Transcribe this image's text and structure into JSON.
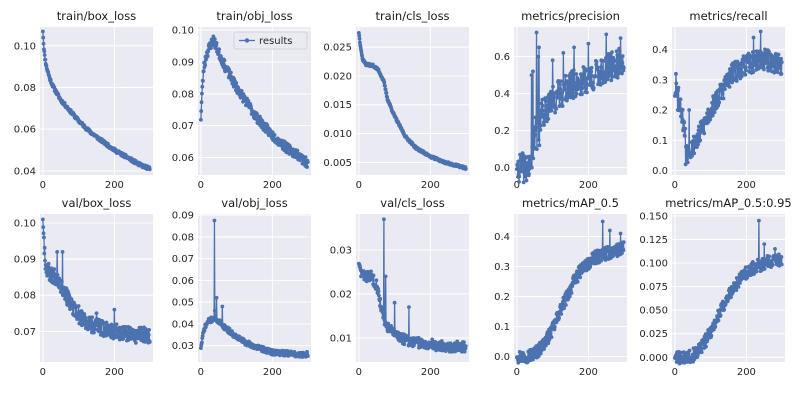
{
  "colors": {
    "series": "#4c72b0",
    "panel": "#eaeaf2",
    "grid": "#ffffff"
  },
  "chart_data": [
    {
      "type": "line",
      "title": "train/box_loss",
      "legend": null,
      "xlim": [
        -8,
        308
      ],
      "xticks": [
        0,
        200
      ],
      "ylim": [
        0.038,
        0.109
      ],
      "yticks": [
        0.04,
        0.06,
        0.08,
        0.1
      ],
      "ytick_labels": [
        "0.04",
        "0.06",
        "0.08",
        "0.10"
      ],
      "anchors": [
        [
          0,
          0.107
        ],
        [
          2,
          0.101
        ],
        [
          5,
          0.095
        ],
        [
          10,
          0.09
        ],
        [
          20,
          0.084
        ],
        [
          30,
          0.08
        ],
        [
          40,
          0.077
        ],
        [
          50,
          0.074
        ],
        [
          70,
          0.07
        ],
        [
          100,
          0.064
        ],
        [
          130,
          0.059
        ],
        [
          160,
          0.055
        ],
        [
          200,
          0.05
        ],
        [
          240,
          0.046
        ],
        [
          270,
          0.043
        ],
        [
          299,
          0.041
        ]
      ],
      "noise": 0.0008,
      "seed": 11
    },
    {
      "type": "line",
      "title": "train/obj_loss",
      "legend": "results",
      "legend_position": "top-right",
      "xlim": [
        -8,
        308
      ],
      "xticks": [
        0,
        200
      ],
      "ylim": [
        0.0545,
        0.101
      ],
      "yticks": [
        0.06,
        0.07,
        0.08,
        0.09,
        0.1
      ],
      "ytick_labels": [
        "0.06",
        "0.07",
        "0.08",
        "0.09",
        "0.10"
      ],
      "anchors": [
        [
          0,
          0.072
        ],
        [
          3,
          0.08
        ],
        [
          8,
          0.088
        ],
        [
          15,
          0.092
        ],
        [
          25,
          0.095
        ],
        [
          35,
          0.097
        ],
        [
          50,
          0.093
        ],
        [
          70,
          0.088
        ],
        [
          100,
          0.082
        ],
        [
          130,
          0.077
        ],
        [
          160,
          0.072
        ],
        [
          200,
          0.067
        ],
        [
          240,
          0.063
        ],
        [
          270,
          0.061
        ],
        [
          299,
          0.058
        ]
      ],
      "noise": 0.0015,
      "seed": 23
    },
    {
      "type": "line",
      "title": "train/cls_loss",
      "legend": null,
      "xlim": [
        -8,
        308
      ],
      "xticks": [
        0,
        200
      ],
      "ylim": [
        0.0028,
        0.0285
      ],
      "yticks": [
        0.005,
        0.01,
        0.015,
        0.02,
        0.025
      ],
      "ytick_labels": [
        "0.005",
        "0.010",
        "0.015",
        "0.020",
        "0.025"
      ],
      "anchors": [
        [
          0,
          0.0275
        ],
        [
          5,
          0.025
        ],
        [
          10,
          0.023
        ],
        [
          20,
          0.022
        ],
        [
          40,
          0.0218
        ],
        [
          55,
          0.021
        ],
        [
          70,
          0.019
        ],
        [
          80,
          0.016
        ],
        [
          100,
          0.013
        ],
        [
          130,
          0.0095
        ],
        [
          160,
          0.0075
        ],
        [
          200,
          0.006
        ],
        [
          240,
          0.005
        ],
        [
          270,
          0.0045
        ],
        [
          299,
          0.004
        ]
      ],
      "noise": 0.0002,
      "seed": 37
    },
    {
      "type": "line",
      "title": "metrics/precision",
      "legend": null,
      "xlim": [
        -8,
        308
      ],
      "xticks": [
        0,
        200
      ],
      "ylim": [
        -0.04,
        0.76
      ],
      "yticks": [
        0.0,
        0.2,
        0.4,
        0.6
      ],
      "ytick_labels": [
        "0.0",
        "0.2",
        "0.4",
        "0.6"
      ],
      "anchors": [
        [
          0,
          0.0
        ],
        [
          40,
          0.0
        ],
        [
          45,
          0.15
        ],
        [
          60,
          0.25
        ],
        [
          80,
          0.32
        ],
        [
          120,
          0.4
        ],
        [
          160,
          0.45
        ],
        [
          200,
          0.48
        ],
        [
          240,
          0.52
        ],
        [
          270,
          0.55
        ],
        [
          299,
          0.58
        ]
      ],
      "noise": 0.08,
      "seed": 41,
      "spikes": [
        [
          40,
          0.0
        ],
        [
          41,
          0.5
        ],
        [
          42,
          0.0
        ],
        [
          45,
          0.52
        ],
        [
          46,
          0.05
        ],
        [
          55,
          0.73
        ],
        [
          56,
          0.1
        ],
        [
          60,
          0.6
        ],
        [
          61,
          0.15
        ],
        [
          62,
          0.65
        ],
        [
          63,
          0.12
        ],
        [
          100,
          0.58
        ],
        [
          130,
          0.62
        ],
        [
          160,
          0.65
        ],
        [
          200,
          0.67
        ],
        [
          250,
          0.72
        ],
        [
          290,
          0.7
        ]
      ]
    },
    {
      "type": "line",
      "title": "metrics/recall",
      "legend": null,
      "xlim": [
        -8,
        308
      ],
      "xticks": [
        0,
        200
      ],
      "ylim": [
        -0.015,
        0.475
      ],
      "yticks": [
        0.0,
        0.1,
        0.2,
        0.3,
        0.4
      ],
      "ytick_labels": [
        "0.0",
        "0.1",
        "0.2",
        "0.3",
        "0.4"
      ],
      "anchors": [
        [
          0,
          0.25
        ],
        [
          5,
          0.28
        ],
        [
          15,
          0.22
        ],
        [
          25,
          0.15
        ],
        [
          35,
          0.06
        ],
        [
          50,
          0.08
        ],
        [
          70,
          0.12
        ],
        [
          100,
          0.2
        ],
        [
          130,
          0.26
        ],
        [
          160,
          0.32
        ],
        [
          200,
          0.35
        ],
        [
          240,
          0.37
        ],
        [
          270,
          0.36
        ],
        [
          299,
          0.35
        ]
      ],
      "noise": 0.035,
      "seed": 53,
      "spikes": [
        [
          3,
          0.32
        ],
        [
          8,
          0.2
        ],
        [
          30,
          0.02
        ],
        [
          40,
          0.2
        ],
        [
          220,
          0.44
        ],
        [
          240,
          0.46
        ]
      ]
    },
    {
      "type": "line",
      "title": "val/box_loss",
      "legend": null,
      "xlim": [
        -8,
        308
      ],
      "xticks": [
        0,
        200
      ],
      "ylim": [
        0.0615,
        0.1025
      ],
      "yticks": [
        0.07,
        0.08,
        0.09,
        0.1
      ],
      "ytick_labels": [
        "0.07",
        "0.08",
        "0.09",
        "0.10"
      ],
      "anchors": [
        [
          0,
          0.101
        ],
        [
          3,
          0.095
        ],
        [
          8,
          0.088
        ],
        [
          20,
          0.086
        ],
        [
          40,
          0.085
        ],
        [
          60,
          0.081
        ],
        [
          80,
          0.077
        ],
        [
          100,
          0.074
        ],
        [
          130,
          0.072
        ],
        [
          160,
          0.071
        ],
        [
          200,
          0.07
        ],
        [
          240,
          0.069
        ],
        [
          270,
          0.069
        ],
        [
          299,
          0.069
        ]
      ],
      "noise": 0.0022,
      "seed": 67,
      "spikes": [
        [
          0,
          0.101
        ],
        [
          3,
          0.096
        ],
        [
          40,
          0.092
        ],
        [
          55,
          0.092
        ],
        [
          100,
          0.077
        ],
        [
          150,
          0.075
        ],
        [
          200,
          0.076
        ]
      ]
    },
    {
      "type": "line",
      "title": "val/obj_loss",
      "legend": null,
      "xlim": [
        -8,
        308
      ],
      "xticks": [
        0,
        200
      ],
      "ylim": [
        0.0225,
        0.0905
      ],
      "yticks": [
        0.03,
        0.04,
        0.05,
        0.06,
        0.07,
        0.08,
        0.09
      ],
      "ytick_labels": [
        "0.03",
        "0.04",
        "0.05",
        "0.06",
        "0.07",
        "0.08",
        "0.09"
      ],
      "anchors": [
        [
          0,
          0.029
        ],
        [
          5,
          0.034
        ],
        [
          10,
          0.038
        ],
        [
          20,
          0.041
        ],
        [
          30,
          0.042
        ],
        [
          40,
          0.043
        ],
        [
          50,
          0.041
        ],
        [
          70,
          0.038
        ],
        [
          100,
          0.034
        ],
        [
          130,
          0.031
        ],
        [
          160,
          0.029
        ],
        [
          200,
          0.027
        ],
        [
          240,
          0.0265
        ],
        [
          270,
          0.026
        ],
        [
          299,
          0.026
        ]
      ],
      "noise": 0.0012,
      "seed": 71,
      "spikes": [
        [
          38,
          0.0875
        ],
        [
          39,
          0.046
        ],
        [
          44,
          0.052
        ],
        [
          60,
          0.048
        ]
      ]
    },
    {
      "type": "line",
      "title": "val/cls_loss",
      "legend": null,
      "xlim": [
        -8,
        308
      ],
      "xticks": [
        0,
        200
      ],
      "ylim": [
        0.0045,
        0.0382
      ],
      "yticks": [
        0.01,
        0.02,
        0.03
      ],
      "ytick_labels": [
        "0.01",
        "0.02",
        "0.03"
      ],
      "anchors": [
        [
          0,
          0.027
        ],
        [
          5,
          0.025
        ],
        [
          15,
          0.024
        ],
        [
          35,
          0.024
        ],
        [
          50,
          0.022
        ],
        [
          60,
          0.018
        ],
        [
          70,
          0.014
        ],
        [
          85,
          0.012
        ],
        [
          100,
          0.011
        ],
        [
          130,
          0.0095
        ],
        [
          160,
          0.009
        ],
        [
          200,
          0.0085
        ],
        [
          240,
          0.008
        ],
        [
          270,
          0.008
        ],
        [
          299,
          0.008
        ]
      ],
      "noise": 0.0012,
      "seed": 83,
      "spikes": [
        [
          70,
          0.037
        ],
        [
          72,
          0.013
        ],
        [
          75,
          0.024
        ],
        [
          100,
          0.018
        ],
        [
          140,
          0.017
        ]
      ]
    },
    {
      "type": "line",
      "title": "metrics/mAP_0.5",
      "legend": null,
      "xlim": [
        -8,
        308
      ],
      "xticks": [
        0,
        200
      ],
      "ylim": [
        -0.018,
        0.475
      ],
      "yticks": [
        0.0,
        0.1,
        0.2,
        0.3,
        0.4
      ],
      "ytick_labels": [
        "0.0",
        "0.1",
        "0.2",
        "0.3",
        "0.4"
      ],
      "anchors": [
        [
          0,
          0.0
        ],
        [
          20,
          0.0
        ],
        [
          40,
          0.005
        ],
        [
          60,
          0.02
        ],
        [
          80,
          0.05
        ],
        [
          100,
          0.09
        ],
        [
          120,
          0.15
        ],
        [
          140,
          0.2
        ],
        [
          160,
          0.25
        ],
        [
          180,
          0.29
        ],
        [
          200,
          0.31
        ],
        [
          220,
          0.33
        ],
        [
          240,
          0.34
        ],
        [
          270,
          0.35
        ],
        [
          299,
          0.36
        ]
      ],
      "noise": 0.022,
      "seed": 97,
      "spikes": [
        [
          240,
          0.45
        ],
        [
          260,
          0.42
        ],
        [
          290,
          0.41
        ]
      ]
    },
    {
      "type": "line",
      "title": "metrics/mAP_0.5:0.95",
      "legend": null,
      "xlim": [
        -8,
        308
      ],
      "xticks": [
        0,
        200
      ],
      "ylim": [
        -0.005,
        0.152
      ],
      "yticks": [
        0.0,
        0.025,
        0.05,
        0.075,
        0.1,
        0.125,
        0.15
      ],
      "ytick_labels": [
        "0.000",
        "0.025",
        "0.050",
        "0.075",
        "0.100",
        "0.125",
        "0.150"
      ],
      "anchors": [
        [
          0,
          0.0
        ],
        [
          30,
          0.0
        ],
        [
          50,
          0.002
        ],
        [
          70,
          0.008
        ],
        [
          90,
          0.02
        ],
        [
          110,
          0.035
        ],
        [
          130,
          0.05
        ],
        [
          150,
          0.065
        ],
        [
          170,
          0.077
        ],
        [
          190,
          0.087
        ],
        [
          210,
          0.093
        ],
        [
          240,
          0.098
        ],
        [
          270,
          0.102
        ],
        [
          299,
          0.104
        ]
      ],
      "noise": 0.007,
      "seed": 101,
      "spikes": [
        [
          235,
          0.145
        ],
        [
          250,
          0.12
        ],
        [
          280,
          0.115
        ]
      ]
    }
  ]
}
